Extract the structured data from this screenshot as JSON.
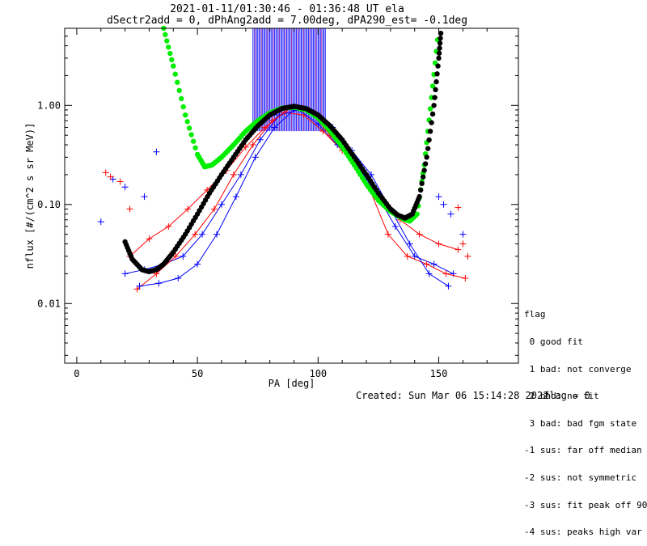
{
  "header": {
    "title_line1": "2021-01-11/01:30:46 - 01:36:48 UT ela",
    "title_line2": "dSectr2add = 0, dPhAng2add = 7.00deg, dPA290_est=  -0.1deg"
  },
  "legend": {
    "title": "flag",
    "items": [
      " 0 good fit",
      " 1 bad: not converge",
      " 2 bad: no fit",
      " 3 bad: bad fgm state",
      "-1 sus: far off median",
      "-2 sus: not symmetric",
      "-3 sus: fit peak off 90",
      "-4 sus: peaks high var"
    ]
  },
  "footer": {
    "created": "Created: Sun Mar 06 15:14:28 2022",
    "flag": "flag = 0"
  },
  "colors": {
    "red": "#ff0000",
    "blue": "#0000ff",
    "green": "#00ee00",
    "black": "#000000",
    "purple": "#7700aa"
  },
  "chart_data": {
    "type": "line",
    "xlabel": "PA [deg]",
    "ylabel": "nflux [#/(cm^2 s sr MeV)]",
    "xlim": [
      -5,
      183
    ],
    "ylim": [
      0.0025,
      6.0
    ],
    "yscale": "log",
    "xticks": [
      0,
      50,
      100,
      150
    ],
    "yticks": [
      0.01,
      0.1,
      1.0
    ],
    "ytick_labels": [
      "0.01",
      "0.10",
      "1.00"
    ],
    "series": [
      {
        "color": "red",
        "x": [
          22,
          30,
          38,
          46,
          54,
          62,
          70,
          78,
          86,
          94,
          102,
          110,
          118,
          126,
          134,
          142,
          150,
          158
        ],
        "y": [
          0.03,
          0.045,
          0.06,
          0.09,
          0.14,
          0.22,
          0.38,
          0.6,
          0.85,
          0.8,
          0.55,
          0.35,
          0.22,
          0.12,
          0.07,
          0.05,
          0.04,
          0.035
        ]
      },
      {
        "color": "blue",
        "x": [
          20,
          28,
          36,
          44,
          52,
          60,
          68,
          76,
          84,
          92,
          100,
          108,
          116,
          124,
          132,
          140,
          148,
          156
        ],
        "y": [
          0.02,
          0.022,
          0.025,
          0.03,
          0.05,
          0.1,
          0.2,
          0.45,
          0.8,
          0.9,
          0.65,
          0.4,
          0.25,
          0.13,
          0.06,
          0.03,
          0.025,
          0.02
        ]
      },
      {
        "color": "red",
        "x": [
          25,
          33,
          41,
          49,
          57,
          65,
          73,
          81,
          89,
          97,
          105,
          113,
          121,
          129,
          137,
          145,
          153,
          161
        ],
        "y": [
          0.014,
          0.02,
          0.03,
          0.05,
          0.09,
          0.2,
          0.4,
          0.7,
          0.95,
          0.85,
          0.5,
          0.3,
          0.15,
          0.05,
          0.03,
          0.025,
          0.02,
          0.018
        ]
      },
      {
        "color": "blue",
        "x": [
          26,
          34,
          42,
          50,
          58,
          66,
          74,
          82,
          90,
          98,
          106,
          114,
          122,
          130,
          138,
          146,
          154
        ],
        "y": [
          0.015,
          0.016,
          0.018,
          0.025,
          0.05,
          0.12,
          0.3,
          0.6,
          0.9,
          0.85,
          0.6,
          0.35,
          0.2,
          0.09,
          0.04,
          0.02,
          0.015
        ]
      }
    ],
    "model_curves": [
      {
        "color": "green",
        "x": [
          36,
          40,
          45,
          50,
          53,
          56,
          60,
          65,
          70,
          75,
          80,
          85,
          90,
          95,
          100,
          105,
          110,
          115,
          120,
          125,
          130,
          135,
          138,
          141,
          144,
          147,
          150
        ],
        "y": [
          6.0,
          2.5,
          0.8,
          0.32,
          0.24,
          0.25,
          0.3,
          0.4,
          0.55,
          0.7,
          0.84,
          0.94,
          0.96,
          0.9,
          0.75,
          0.55,
          0.38,
          0.25,
          0.16,
          0.11,
          0.085,
          0.072,
          0.068,
          0.08,
          0.25,
          1.2,
          6.0
        ]
      },
      {
        "color": "black",
        "x": [
          20,
          23,
          27,
          30,
          33,
          36,
          40,
          45,
          50,
          55,
          60,
          65,
          70,
          75,
          80,
          85,
          90,
          95,
          100,
          105,
          110,
          115,
          120,
          125,
          130,
          133,
          136,
          139,
          142,
          145,
          148,
          150,
          151
        ],
        "y": [
          0.042,
          0.028,
          0.022,
          0.021,
          0.022,
          0.025,
          0.033,
          0.05,
          0.08,
          0.13,
          0.2,
          0.3,
          0.45,
          0.62,
          0.8,
          0.93,
          0.98,
          0.93,
          0.8,
          0.62,
          0.45,
          0.3,
          0.2,
          0.13,
          0.09,
          0.078,
          0.073,
          0.08,
          0.12,
          0.3,
          1.0,
          3.0,
          6.0
        ]
      }
    ],
    "markers_sample": [
      {
        "color": "blue",
        "x": [
          10,
          15,
          20,
          28,
          33
        ],
        "y": [
          0.067,
          0.18,
          0.15,
          0.12,
          0.34
        ]
      },
      {
        "color": "red",
        "x": [
          12,
          14,
          18,
          22
        ],
        "y": [
          0.21,
          0.19,
          0.17,
          0.09
        ]
      },
      {
        "color": "red",
        "x": [
          158,
          160,
          162
        ],
        "y": [
          0.093,
          0.04,
          0.03
        ]
      },
      {
        "color": "blue",
        "x": [
          150,
          152,
          155,
          160
        ],
        "y": [
          0.12,
          0.1,
          0.08,
          0.05
        ]
      }
    ],
    "vertical_lines": {
      "color": "blue",
      "accent": "purple",
      "x_from": 73,
      "x_to": 103,
      "y_top": 6.0,
      "y_bottom": 0.55
    }
  }
}
